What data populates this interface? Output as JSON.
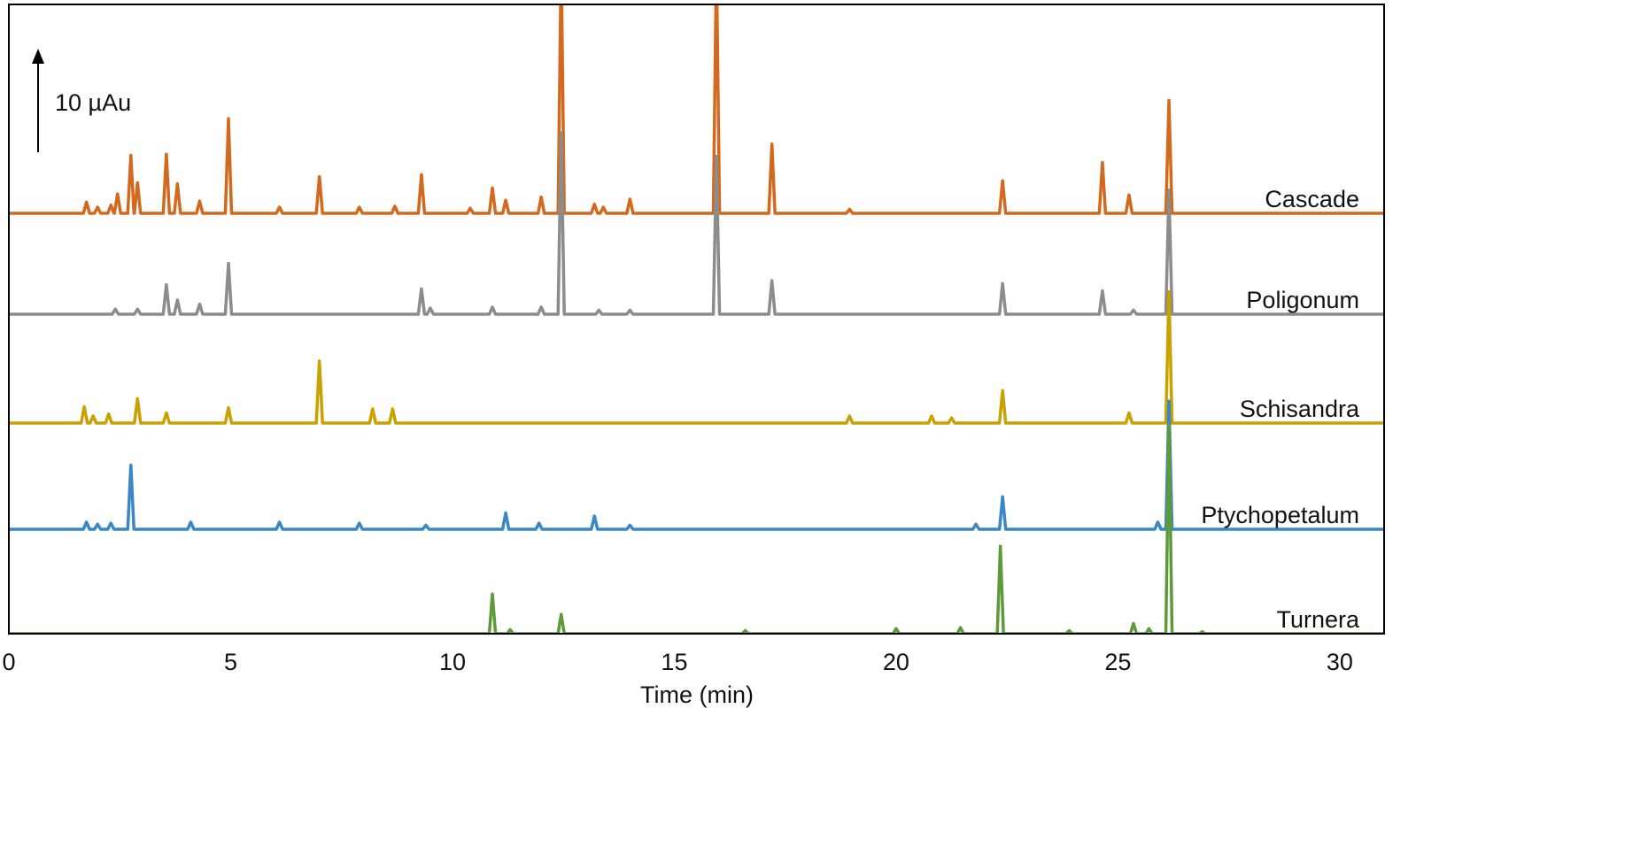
{
  "chart_data": {
    "type": "line",
    "x_label": "Time (min)",
    "xlim": [
      0,
      31
    ],
    "xticks": [
      0,
      5,
      10,
      15,
      20,
      25,
      30
    ],
    "scale_bar": {
      "value": 10,
      "label": "10 µAu"
    },
    "series": [
      {
        "name": "Cascade",
        "color": "#d2691e",
        "x": [
          0,
          1.68,
          1.75,
          1.82,
          1.93,
          2.0,
          2.07,
          2.23,
          2.3,
          2.37,
          2.38,
          2.45,
          2.52,
          2.68,
          2.75,
          2.82,
          2.83,
          2.9,
          2.97,
          3.48,
          3.55,
          3.62,
          3.73,
          3.8,
          3.87,
          4.23,
          4.3,
          4.37,
          4.88,
          4.95,
          5.02,
          6.03,
          6.1,
          6.17,
          6.93,
          7.0,
          7.07,
          7.83,
          7.9,
          7.97,
          8.63,
          8.7,
          8.77,
          9.23,
          9.3,
          9.37,
          10.33,
          10.4,
          10.47,
          10.83,
          10.9,
          10.97,
          11.13,
          11.2,
          11.27,
          11.93,
          12.0,
          12.07,
          12.38,
          12.45,
          12.52,
          13.13,
          13.2,
          13.27,
          13.33,
          13.4,
          13.47,
          13.93,
          14.0,
          14.07,
          15.88,
          15.95,
          16.02,
          17.13,
          17.2,
          17.27,
          18.88,
          18.95,
          19.02,
          22.33,
          22.4,
          22.47,
          24.58,
          24.65,
          24.72,
          25.18,
          25.25,
          25.32,
          26.08,
          26.15,
          26.22,
          31
        ],
        "values": [
          0,
          0,
          1.1,
          0,
          0,
          0.6,
          0,
          0,
          0.8,
          0,
          0,
          1.9,
          0,
          0,
          5.7,
          0,
          0,
          3.0,
          0,
          0,
          5.8,
          0,
          0,
          2.9,
          0,
          0,
          1.2,
          0,
          0,
          9.3,
          0,
          0,
          0.6,
          0,
          0,
          3.6,
          0,
          0,
          0.6,
          0,
          0,
          0.7,
          0,
          0,
          3.8,
          0,
          0,
          0.5,
          0,
          0,
          2.5,
          0,
          0,
          1.3,
          0,
          0,
          1.6,
          0,
          0,
          25,
          0,
          0,
          0.9,
          0,
          0,
          0.6,
          0,
          0,
          1.4,
          0,
          0,
          25,
          0,
          0,
          6.8,
          0,
          0,
          0.4,
          0,
          0,
          3.2,
          0,
          0,
          5.0,
          0,
          0,
          1.8,
          0,
          0,
          11.1,
          0,
          0
        ]
      },
      {
        "name": "Poligonum",
        "color": "#8c8c8c",
        "x": [
          0,
          2.33,
          2.4,
          2.47,
          2.83,
          2.9,
          2.97,
          3.48,
          3.55,
          3.62,
          3.73,
          3.8,
          3.87,
          4.23,
          4.3,
          4.37,
          4.88,
          4.95,
          5.02,
          9.23,
          9.3,
          9.37,
          9.43,
          9.5,
          9.57,
          10.83,
          10.9,
          10.97,
          11.93,
          12.0,
          12.07,
          12.38,
          12.45,
          12.52,
          13.23,
          13.3,
          13.37,
          13.93,
          14.0,
          14.07,
          15.88,
          15.95,
          16.02,
          17.13,
          17.2,
          17.27,
          22.33,
          22.4,
          22.47,
          24.58,
          24.65,
          24.72,
          25.28,
          25.35,
          25.42,
          26.08,
          26.15,
          26.22,
          31
        ],
        "values": [
          0,
          0,
          0.5,
          0,
          0,
          0.5,
          0,
          0,
          2.9,
          0,
          0,
          1.4,
          0,
          0,
          1.0,
          0,
          0,
          5.0,
          0,
          0,
          2.5,
          0,
          0,
          0.6,
          0,
          0,
          0.7,
          0,
          0,
          0.7,
          0,
          0,
          17.8,
          0,
          0,
          0.4,
          0,
          0,
          0.4,
          0,
          0,
          15.5,
          0,
          0,
          3.3,
          0,
          0,
          3.0,
          0,
          0,
          2.3,
          0,
          0,
          0.4,
          0,
          0,
          12.2,
          0,
          0
        ]
      },
      {
        "name": "Schisandra",
        "color": "#c9a100",
        "x": [
          0,
          1.63,
          1.7,
          1.77,
          1.83,
          1.9,
          1.97,
          2.18,
          2.25,
          2.32,
          2.83,
          2.9,
          2.97,
          3.48,
          3.55,
          3.62,
          4.88,
          4.95,
          5.02,
          6.93,
          7.0,
          7.07,
          8.13,
          8.2,
          8.27,
          8.58,
          8.65,
          8.72,
          18.88,
          18.95,
          19.02,
          20.73,
          20.8,
          20.87,
          21.18,
          21.25,
          21.32,
          22.33,
          22.4,
          22.47,
          25.18,
          25.25,
          25.32,
          26.08,
          26.15,
          26.22,
          31
        ],
        "values": [
          0,
          0,
          1.6,
          0,
          0,
          0.7,
          0,
          0,
          0.9,
          0,
          0,
          2.4,
          0,
          0,
          1.0,
          0,
          0,
          1.5,
          0,
          0,
          6.1,
          0,
          0,
          1.4,
          0,
          0,
          1.4,
          0,
          0,
          0.7,
          0,
          0,
          0.7,
          0,
          0,
          0.5,
          0,
          0,
          3.2,
          0,
          0,
          1.0,
          0,
          0,
          12.9,
          0,
          0
        ]
      },
      {
        "name": "Ptychopetalum",
        "color": "#3a87c7",
        "x": [
          0,
          1.68,
          1.75,
          1.82,
          1.93,
          2.0,
          2.07,
          2.23,
          2.3,
          2.37,
          2.68,
          2.75,
          2.82,
          4.03,
          4.1,
          4.17,
          6.03,
          6.1,
          6.17,
          7.83,
          7.9,
          7.97,
          9.33,
          9.4,
          9.47,
          11.13,
          11.2,
          11.27,
          11.88,
          11.95,
          12.02,
          13.13,
          13.2,
          13.27,
          13.93,
          14.0,
          14.07,
          21.73,
          21.8,
          21.87,
          22.33,
          22.4,
          22.47,
          25.83,
          25.9,
          25.97,
          26.08,
          26.15,
          26.22,
          31
        ],
        "values": [
          0,
          0,
          0.7,
          0,
          0,
          0.5,
          0,
          0,
          0.6,
          0,
          0,
          6.3,
          0,
          0,
          0.7,
          0,
          0,
          0.7,
          0,
          0,
          0.6,
          0,
          0,
          0.4,
          0,
          0,
          1.6,
          0,
          0,
          0.6,
          0,
          0,
          1.3,
          0,
          0,
          0.4,
          0,
          0,
          0.5,
          0,
          0,
          3.2,
          0,
          0,
          0.7,
          0,
          0,
          12.6,
          0,
          0
        ]
      },
      {
        "name": "Turnera",
        "color": "#5e9a3a",
        "x": [
          0,
          10.83,
          10.9,
          10.97,
          11.23,
          11.3,
          11.37,
          12.38,
          12.45,
          12.52,
          16.53,
          16.6,
          16.67,
          19.93,
          20.0,
          20.07,
          21.38,
          21.45,
          21.52,
          22.28,
          22.35,
          22.42,
          23.83,
          23.9,
          23.97,
          25.28,
          25.35,
          25.42,
          25.63,
          25.7,
          25.77,
          26.08,
          26.15,
          26.22,
          26.83,
          26.9,
          26.97,
          31
        ],
        "values": [
          0,
          0,
          3.9,
          0,
          0,
          0.4,
          0,
          0,
          1.9,
          0,
          0,
          0.3,
          0,
          0,
          0.5,
          0,
          0,
          0.6,
          0,
          0,
          8.6,
          0,
          0,
          0.3,
          0,
          0,
          1.0,
          0,
          0,
          0.5,
          0,
          0,
          20.5,
          0,
          0,
          0.2,
          0,
          0
        ]
      }
    ]
  }
}
